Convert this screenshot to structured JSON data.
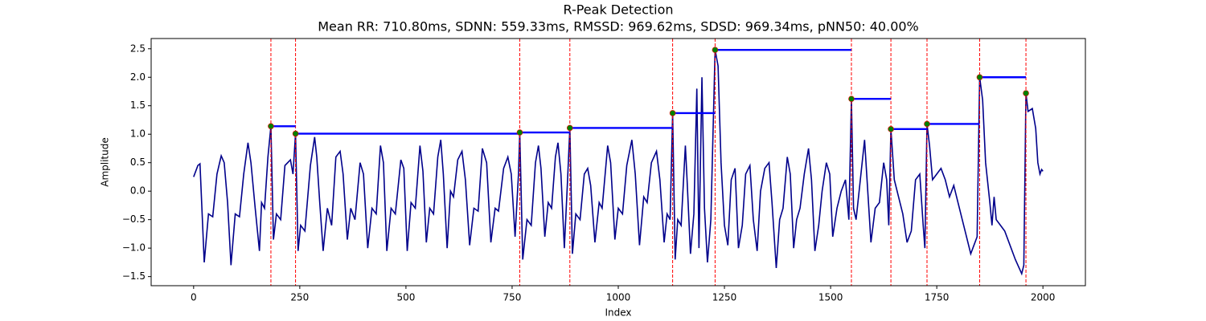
{
  "chart_data": {
    "type": "line",
    "title": "R-Peak Detection",
    "subtitle": "Mean RR: 710.80ms, SDNN: 559.33ms, RMSSD: 969.62ms, SDSD: 969.34ms, pNN50: 40.00%",
    "xlabel": "Index",
    "ylabel": "Amplitude",
    "color": "#00008b",
    "x": [
      0,
      10,
      15,
      25,
      35,
      45,
      55,
      65,
      72,
      80,
      88,
      98,
      108,
      118,
      128,
      135,
      145,
      155,
      160,
      167,
      175,
      182,
      188,
      195,
      205,
      215,
      228,
      234,
      240,
      246,
      252,
      262,
      275,
      285,
      290,
      297,
      305,
      315,
      325,
      335,
      345,
      352,
      362,
      370,
      380,
      392,
      400,
      410,
      420,
      430,
      440,
      447,
      455,
      465,
      475,
      488,
      495,
      503,
      512,
      522,
      533,
      540,
      548,
      556,
      565,
      575,
      582,
      588,
      597,
      605,
      612,
      622,
      632,
      640,
      650,
      660,
      670,
      680,
      690,
      700,
      710,
      718,
      730,
      740,
      748,
      757,
      765,
      768,
      775,
      785,
      795,
      805,
      812,
      818,
      827,
      835,
      843,
      852,
      858,
      865,
      873,
      880,
      886,
      892,
      900,
      910,
      920,
      928,
      935,
      945,
      955,
      962,
      975,
      982,
      992,
      1000,
      1010,
      1020,
      1032,
      1040,
      1050,
      1060,
      1068,
      1078,
      1090,
      1098,
      1108,
      1115,
      1122,
      1128,
      1134,
      1140,
      1148,
      1158,
      1162,
      1170,
      1178,
      1185,
      1190,
      1197,
      1203,
      1210,
      1218,
      1228,
      1235,
      1242,
      1250,
      1258,
      1266,
      1275,
      1283,
      1292,
      1300,
      1310,
      1318,
      1327,
      1335,
      1345,
      1355,
      1362,
      1372,
      1380,
      1388,
      1398,
      1405,
      1413,
      1420,
      1428,
      1438,
      1448,
      1455,
      1463,
      1472,
      1480,
      1490,
      1498,
      1505,
      1515,
      1525,
      1535,
      1543,
      1549,
      1554,
      1560,
      1570,
      1580,
      1585,
      1595,
      1605,
      1615,
      1625,
      1632,
      1637,
      1642,
      1650,
      1660,
      1670,
      1680,
      1690,
      1700,
      1710,
      1718,
      1722,
      1727,
      1733,
      1740,
      1750,
      1760,
      1770,
      1780,
      1790,
      1800,
      1810,
      1820,
      1830,
      1845,
      1851,
      1858,
      1865,
      1875,
      1880,
      1885,
      1890,
      1900,
      1910,
      1920,
      1935,
      1950,
      1955,
      1960,
      1965,
      1975,
      1983,
      1988,
      1993,
      1997,
      2000
    ],
    "values": [
      0.25,
      0.45,
      0.48,
      -1.25,
      -0.4,
      -0.45,
      0.3,
      0.62,
      0.5,
      -0.2,
      -1.3,
      -0.4,
      -0.45,
      0.3,
      0.85,
      0.5,
      -0.3,
      -1.05,
      -0.2,
      -0.3,
      0.6,
      1.14,
      -0.85,
      -0.4,
      -0.5,
      0.45,
      0.55,
      0.3,
      1.01,
      -1.05,
      -0.6,
      -0.7,
      0.45,
      0.95,
      0.6,
      -0.2,
      -1.05,
      -0.3,
      -0.6,
      0.6,
      0.7,
      0.3,
      -0.85,
      -0.3,
      -0.5,
      0.5,
      0.3,
      -1.0,
      -0.3,
      -0.4,
      0.8,
      0.5,
      -1.05,
      -0.3,
      -0.4,
      0.55,
      0.4,
      -1.05,
      -0.2,
      -0.3,
      0.8,
      0.35,
      -0.9,
      -0.3,
      -0.4,
      0.6,
      0.9,
      0.3,
      -1.0,
      0.0,
      -0.1,
      0.55,
      0.7,
      0.2,
      -0.95,
      -0.3,
      -0.35,
      0.75,
      0.5,
      -0.9,
      -0.3,
      -0.35,
      0.4,
      0.6,
      0.3,
      -0.8,
      0.3,
      1.03,
      -1.2,
      -0.5,
      -0.6,
      0.5,
      0.8,
      0.4,
      -0.8,
      -0.2,
      -0.3,
      0.6,
      0.85,
      0.3,
      -1.0,
      0.1,
      1.11,
      -1.1,
      -0.4,
      -0.5,
      0.3,
      0.4,
      0.1,
      -0.9,
      -0.2,
      -0.3,
      0.8,
      0.5,
      -0.85,
      -0.3,
      -0.4,
      0.45,
      0.9,
      0.3,
      -0.95,
      -0.1,
      -0.2,
      0.5,
      0.7,
      0.2,
      -0.9,
      -0.4,
      -0.5,
      1.37,
      -1.2,
      -0.5,
      -0.6,
      0.8,
      0.2,
      -1.1,
      -0.4,
      1.8,
      -1.0,
      2.0,
      -0.3,
      -1.25,
      -0.5,
      2.48,
      2.2,
      0.5,
      -0.6,
      -0.95,
      0.2,
      0.4,
      -1.0,
      -0.6,
      0.3,
      0.45,
      -0.5,
      -1.05,
      0.0,
      0.4,
      0.5,
      -0.2,
      -1.35,
      -0.5,
      -0.3,
      0.6,
      0.3,
      -1.0,
      -0.5,
      -0.3,
      0.3,
      0.75,
      0.2,
      -1.05,
      -0.6,
      0.0,
      0.5,
      0.3,
      -0.8,
      -0.3,
      0.0,
      0.2,
      -0.5,
      1.62,
      -0.3,
      -0.5,
      0.2,
      0.9,
      0.3,
      -0.9,
      -0.3,
      -0.2,
      0.5,
      0.2,
      -0.6,
      1.09,
      0.2,
      -0.1,
      -0.4,
      -0.9,
      -0.7,
      0.2,
      0.3,
      -0.6,
      -1.0,
      1.18,
      0.8,
      0.2,
      0.3,
      0.4,
      0.2,
      -0.1,
      0.1,
      -0.2,
      -0.5,
      -0.8,
      -1.1,
      -0.8,
      2.0,
      1.6,
      0.5,
      -0.2,
      -0.6,
      -0.1,
      -0.5,
      -0.6,
      -0.7,
      -0.9,
      -1.2,
      -1.45,
      -1.3,
      1.72,
      1.4,
      1.45,
      1.1,
      0.5,
      0.3,
      0.38,
      0.35
    ],
    "peaks": {
      "x": [
        182,
        240,
        768,
        886,
        1128,
        1228,
        1549,
        1642,
        1727,
        1851,
        1960
      ],
      "values": [
        1.14,
        1.01,
        1.03,
        1.11,
        1.37,
        2.48,
        1.62,
        1.09,
        1.18,
        2.0,
        1.72
      ],
      "color": "#008000",
      "edge_color": "#ff0000"
    },
    "peak_line_color": "#ff0000",
    "rr_line_color": "#0000ff",
    "xlim": [
      -100,
      2100
    ],
    "ylim": [
      -1.66,
      2.68
    ],
    "xticks": [
      0,
      250,
      500,
      750,
      1000,
      1250,
      1500,
      1750,
      2000
    ],
    "yticks": [
      {
        "value": -1.5,
        "label": "−1.5"
      },
      {
        "value": -1.0,
        "label": "−1.0"
      },
      {
        "value": -0.5,
        "label": "−0.5"
      },
      {
        "value": 0.0,
        "label": "0.0"
      },
      0.5,
      {
        "value": 1.0,
        "label": "1.0"
      },
      1.5,
      {
        "value": 2.0,
        "label": "2.0"
      },
      2.5
    ]
  }
}
